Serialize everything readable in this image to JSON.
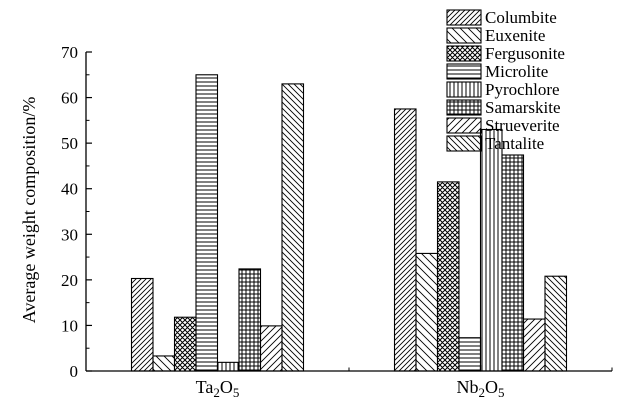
{
  "chart_data": {
    "type": "bar",
    "title": "",
    "xlabel": "",
    "ylabel": "Average weight composition/%",
    "ylim": [
      0,
      70
    ],
    "yticks": [
      0,
      10,
      20,
      30,
      40,
      50,
      60,
      70
    ],
    "grid": false,
    "legend_position": "top-right",
    "categories": [
      {
        "base": "Ta",
        "sub1": "2",
        "mid": "O",
        "sub2": "5"
      },
      {
        "base": "Nb",
        "sub1": "2",
        "mid": "O",
        "sub2": "5"
      }
    ],
    "series": [
      {
        "name": "Columbite",
        "pattern": "diag-fwd-dense",
        "values": [
          20.3,
          57.5
        ]
      },
      {
        "name": "Euxenite",
        "pattern": "diag-back",
        "values": [
          3.3,
          25.8
        ]
      },
      {
        "name": "Fergusonite",
        "pattern": "cross-dense",
        "values": [
          11.8,
          41.5
        ]
      },
      {
        "name": "Microlite",
        "pattern": "horizontal",
        "values": [
          65.0,
          7.3
        ]
      },
      {
        "name": "Pyrochlore",
        "pattern": "vertical",
        "values": [
          1.9,
          53.0
        ]
      },
      {
        "name": "Samarskite",
        "pattern": "grid",
        "values": [
          22.4,
          47.4
        ]
      },
      {
        "name": "Strueverite",
        "pattern": "diag-fwd",
        "values": [
          9.9,
          11.4
        ]
      },
      {
        "name": "Tantalite",
        "pattern": "diag-back-dense",
        "values": [
          63.0,
          20.8
        ]
      }
    ]
  }
}
